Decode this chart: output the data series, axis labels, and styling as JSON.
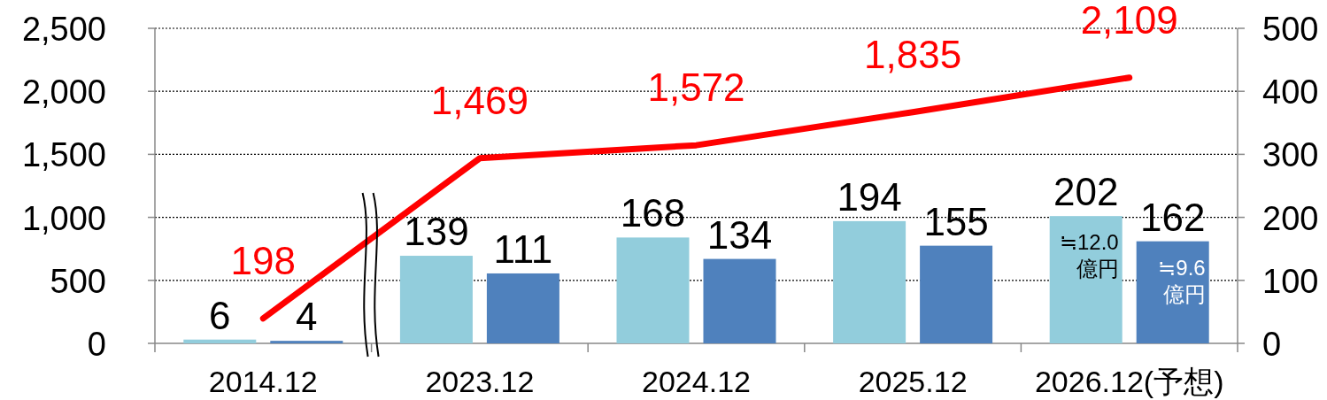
{
  "chart_data": {
    "type": "bar",
    "categories": [
      "2014.12",
      "2023.12",
      "2024.12",
      "2025.12",
      "2026.12(予想)"
    ],
    "series": [
      {
        "axis": "y2",
        "color": "#92cddc",
        "values": [
          6,
          139,
          168,
          194,
          202
        ],
        "value_labels": [
          "6",
          "139",
          "168",
          "194",
          "202"
        ]
      },
      {
        "axis": "y2",
        "color": "#4f81bd",
        "values": [
          4,
          111,
          134,
          155,
          162
        ],
        "value_labels": [
          "4",
          "111",
          "134",
          "155",
          "162"
        ]
      },
      {
        "type": "line",
        "color": "#ff0000",
        "values": [
          198,
          1469,
          1572,
          1835,
          2109
        ],
        "value_labels": [
          "198",
          "1,469",
          "1,572",
          "1,835",
          "2,109"
        ]
      }
    ],
    "ylim": [
      0,
      2500
    ],
    "yticks": [
      0,
      500,
      {
        "value": 1000,
        "label": "1,000"
      },
      {
        "value": 1500,
        "label": "1,500"
      },
      {
        "value": 2000,
        "label": "2,000"
      },
      {
        "value": 2500,
        "label": "2,500"
      }
    ],
    "y2lim": [
      0,
      500
    ],
    "y2ticks": [
      0,
      100,
      200,
      300,
      400,
      500
    ],
    "grid": "y",
    "annotations": [
      "≒12.0 億円",
      "≒9.6 億円"
    ]
  }
}
